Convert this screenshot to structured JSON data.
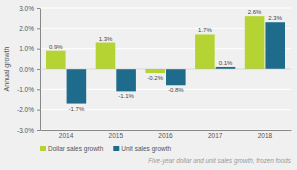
{
  "chart_data": {
    "type": "bar",
    "subtitle": "Five-year dollar and unit sales growth, frozen foods",
    "ylabel": "Annual growth",
    "categories": [
      "2014",
      "2015",
      "2016",
      "2017",
      "2018"
    ],
    "series": [
      {
        "name": "Dollar sales growth",
        "color": "#b5d433",
        "values": [
          0.9,
          1.3,
          -0.2,
          1.7,
          2.6
        ],
        "value_labels": [
          "0.9%",
          "1.3%",
          "-0.2%",
          "1.7%",
          "2.6%"
        ]
      },
      {
        "name": "Unit sales growth",
        "color": "#1e6b8c",
        "values": [
          -1.7,
          -1.1,
          -0.8,
          0.1,
          2.3
        ],
        "value_labels": [
          "-1.7%",
          "-1.1%",
          "-0.8%",
          "0.1%",
          "2.3%"
        ]
      }
    ],
    "ylim": [
      -3.0,
      3.0
    ],
    "yticks": [
      {
        "value": -3.0,
        "label": "-3.0%"
      },
      {
        "value": -2.0,
        "label": "-2.0%"
      },
      {
        "value": -1.0,
        "label": "-1.0%"
      },
      {
        "value": 0.0,
        "label": "0.0%"
      },
      {
        "value": 1.0,
        "label": "1.0%"
      },
      {
        "value": 2.0,
        "label": "2.0%"
      },
      {
        "value": 3.0,
        "label": "3.0%"
      }
    ],
    "grid": true,
    "data_labels": true,
    "legend": "bottom"
  }
}
